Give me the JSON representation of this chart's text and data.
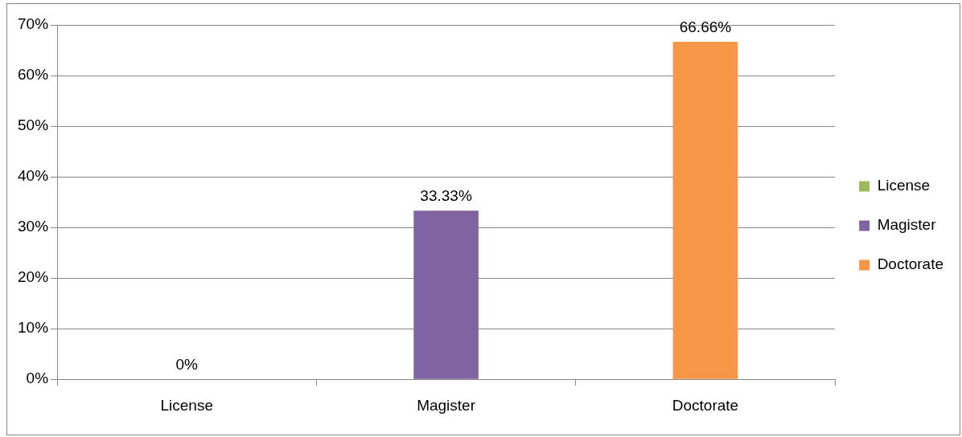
{
  "chart_data": {
    "type": "bar",
    "categories": [
      "License",
      "Magister",
      "Doctorate"
    ],
    "series": [
      {
        "name": "License",
        "color": "#9bbb59",
        "values": [
          0,
          null,
          null
        ],
        "value_labels": [
          "0%",
          null,
          null
        ]
      },
      {
        "name": "Magister",
        "color": "#8064a2",
        "values": [
          null,
          33.33,
          null
        ],
        "value_labels": [
          null,
          "33.33%",
          null
        ]
      },
      {
        "name": "Doctorate",
        "color": "#f79646",
        "values": [
          null,
          null,
          66.66
        ],
        "value_labels": [
          null,
          null,
          "66.66%"
        ]
      }
    ],
    "ylim": [
      0,
      70
    ],
    "yticks": [
      {
        "value": 0,
        "label": "0%"
      },
      {
        "value": 10,
        "label": "10%"
      },
      {
        "value": 20,
        "label": "20%"
      },
      {
        "value": 30,
        "label": "30%"
      },
      {
        "value": 40,
        "label": "40%"
      },
      {
        "value": 50,
        "label": "50%"
      },
      {
        "value": 60,
        "label": "60%"
      },
      {
        "value": 70,
        "label": "70%"
      }
    ],
    "grid": "y",
    "legend": "right"
  }
}
